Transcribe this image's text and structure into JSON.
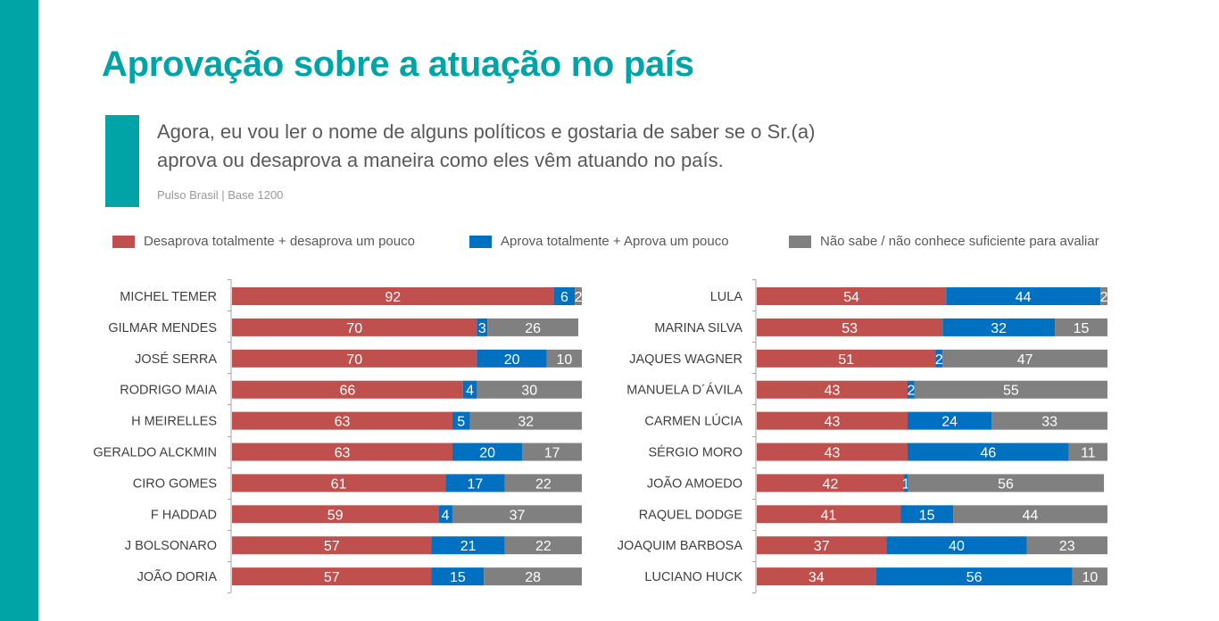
{
  "page": {
    "title": "Aprovação sobre a atuação no país",
    "question": "Agora, eu vou ler o nome de alguns políticos e gostaria de saber se o Sr.(a) aprova ou desaprova a maneira como eles vêm atuando no país.",
    "source": "Pulso Brasil | Base 1200"
  },
  "legend": [
    {
      "label": "Desaprova totalmente + desaprova um pouco",
      "color": "#C0504D"
    },
    {
      "label": "Aprova totalmente + Aprova um pouco",
      "color": "#0070C0"
    },
    {
      "label": "Não sabe / não conhece suficiente para avaliar",
      "color": "#808080"
    }
  ],
  "chart_data": [
    {
      "type": "bar",
      "stacked": true,
      "orientation": "horizontal",
      "xlim": [
        0,
        100
      ],
      "categories": [
        "MICHEL TEMER",
        "GILMAR MENDES",
        "JOSÉ SERRA",
        "RODRIGO MAIA",
        "H MEIRELLES",
        "GERALDO ALCKMIN",
        "CIRO GOMES",
        "F HADDAD",
        "J BOLSONARO",
        "JOÃO DORIA"
      ],
      "series": [
        {
          "name": "Desaprova totalmente + desaprova um pouco",
          "color": "#C0504D",
          "values": [
            92,
            70,
            70,
            66,
            63,
            63,
            61,
            59,
            57,
            57
          ]
        },
        {
          "name": "Aprova totalmente + Aprova um pouco",
          "color": "#0070C0",
          "values": [
            6,
            3,
            20,
            4,
            5,
            20,
            17,
            4,
            21,
            15
          ]
        },
        {
          "name": "Não sabe / não conhece suficiente para avaliar",
          "color": "#808080",
          "values": [
            2,
            26,
            10,
            30,
            32,
            17,
            22,
            37,
            22,
            28
          ]
        }
      ]
    },
    {
      "type": "bar",
      "stacked": true,
      "orientation": "horizontal",
      "xlim": [
        0,
        100
      ],
      "categories": [
        "LULA",
        "MARINA SILVA",
        "JAQUES WAGNER",
        "MANUELA D´ÁVILA",
        "CARMEN LÚCIA",
        "SÉRGIO MORO",
        "JOÃO AMOEDO",
        "RAQUEL DODGE",
        "JOAQUIM BARBOSA",
        "LUCIANO HUCK"
      ],
      "series": [
        {
          "name": "Desaprova totalmente + desaprova um pouco",
          "color": "#C0504D",
          "values": [
            54,
            53,
            51,
            43,
            43,
            43,
            42,
            41,
            37,
            34
          ]
        },
        {
          "name": "Aprova totalmente + Aprova um pouco",
          "color": "#0070C0",
          "values": [
            44,
            32,
            2,
            2,
            24,
            46,
            1,
            15,
            40,
            56
          ]
        },
        {
          "name": "Não sabe / não conhece suficiente para avaliar",
          "color": "#808080",
          "values": [
            2,
            15,
            47,
            55,
            33,
            11,
            56,
            44,
            23,
            10
          ]
        }
      ]
    }
  ]
}
